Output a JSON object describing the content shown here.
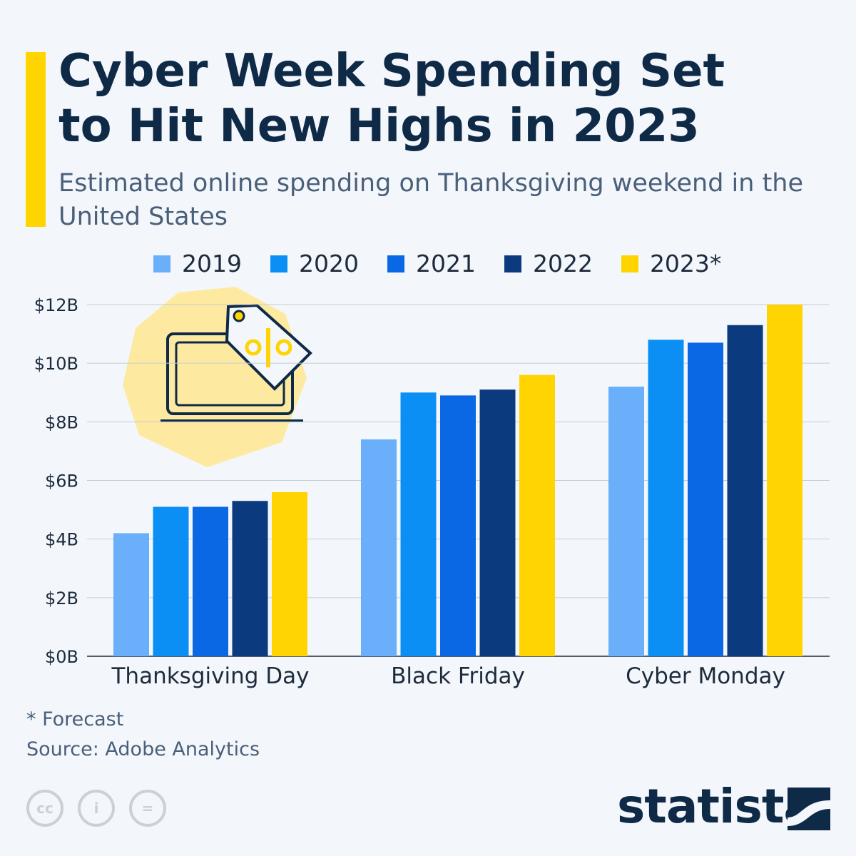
{
  "title": "Cyber Week Spending Set to Hit New Highs in 2023",
  "subtitle": "Estimated online spending on Thanksgiving weekend in the United States",
  "footnote": "* Forecast",
  "source": "Source: Adobe Analytics",
  "brand": "statista",
  "license_icons": [
    "creative-commons-icon",
    "attribution-icon",
    "no-derivatives-icon"
  ],
  "colors": {
    "title": "#0f2a47",
    "background": "#f3f7fb",
    "accent": "#ffd400"
  },
  "chart_data": {
    "type": "bar",
    "title": "Cyber Week Spending Set to Hit New Highs in 2023",
    "categories": [
      "Thanksgiving Day",
      "Black Friday",
      "Cyber Monday"
    ],
    "series": [
      {
        "name": "2019",
        "color": "#6aaffa",
        "values": [
          4.2,
          7.4,
          9.2
        ]
      },
      {
        "name": "2020",
        "color": "#0b8ff5",
        "values": [
          5.1,
          9.0,
          10.8
        ]
      },
      {
        "name": "2021",
        "color": "#0a68e4",
        "values": [
          5.1,
          8.9,
          10.7
        ]
      },
      {
        "name": "2022",
        "color": "#0b3a7e",
        "values": [
          5.3,
          9.1,
          11.3
        ]
      },
      {
        "name": "2023*",
        "color": "#ffd400",
        "values": [
          5.6,
          9.6,
          12.0
        ]
      }
    ],
    "yticks": [
      "$0B",
      "$2B",
      "$4B",
      "$6B",
      "$8B",
      "$10B",
      "$12B"
    ],
    "ylim": [
      0,
      12
    ],
    "unit": "billion USD",
    "grid": true,
    "legend": "top"
  }
}
